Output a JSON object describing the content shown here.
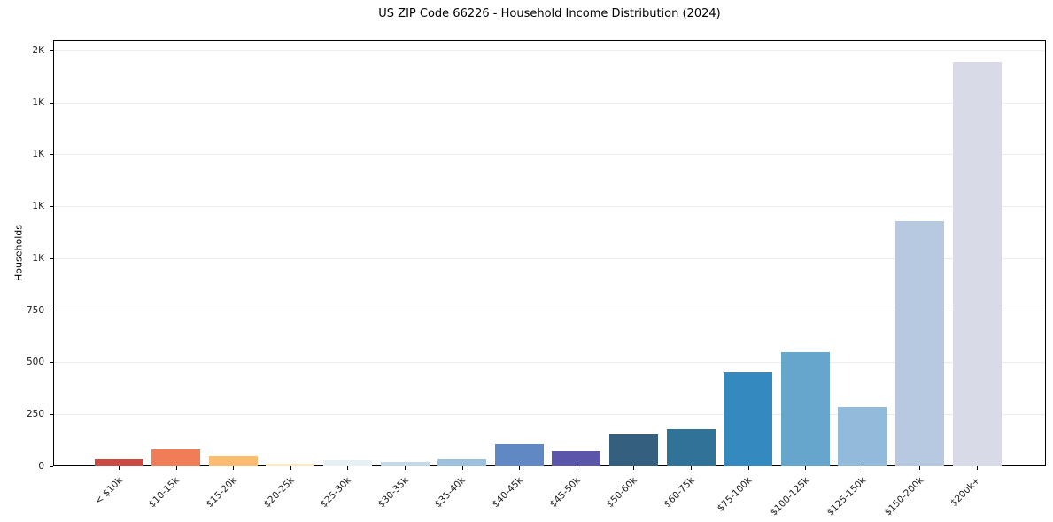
{
  "figure": {
    "title": "US ZIP Code 66226 - Household Income Distribution (2024)",
    "y_axis_label": "Households"
  },
  "chart_data": {
    "type": "bar",
    "title": "US ZIP Code 66226 - Household Income Distribution (2024)",
    "xlabel": "",
    "ylabel": "Households",
    "categories": [
      "< $10k",
      "$10-15k",
      "$15-20k",
      "$20-25k",
      "$25-30k",
      "$30-35k",
      "$35-40k",
      "$40-45k",
      "$45-50k",
      "$50-60k",
      "$60-75k",
      "$75-100k",
      "$100-125k",
      "$125-150k",
      "$150-200k",
      "$200k+"
    ],
    "values": [
      32,
      82,
      52,
      12,
      30,
      22,
      35,
      105,
      72,
      151,
      178,
      452,
      550,
      284,
      1180,
      1945
    ],
    "bar_colors": [
      "#cb4942",
      "#f17d58",
      "#fcbd73",
      "#fbe9c3",
      "#e7f0f4",
      "#c3d9e8",
      "#9cc0dd",
      "#6089c4",
      "#5a57aa",
      "#355f7e",
      "#317299",
      "#348abf",
      "#66a5cc",
      "#91badb",
      "#b7c8e1",
      "#d8dae8"
    ],
    "ylim": [
      0,
      2050
    ],
    "yticks": [
      {
        "value": 0,
        "label": "0"
      },
      {
        "value": 250,
        "label": "250"
      },
      {
        "value": 500,
        "label": "500"
      },
      {
        "value": 750,
        "label": "750"
      },
      {
        "value": 1000,
        "label": "1K"
      },
      {
        "value": 1250,
        "label": "1K"
      },
      {
        "value": 1500,
        "label": "1K"
      },
      {
        "value": 1750,
        "label": "1K"
      },
      {
        "value": 2000,
        "label": "2K"
      }
    ],
    "grid": "horizontal",
    "gridline_color": "#ececec",
    "axis_color": "#000000",
    "legend": "none"
  }
}
